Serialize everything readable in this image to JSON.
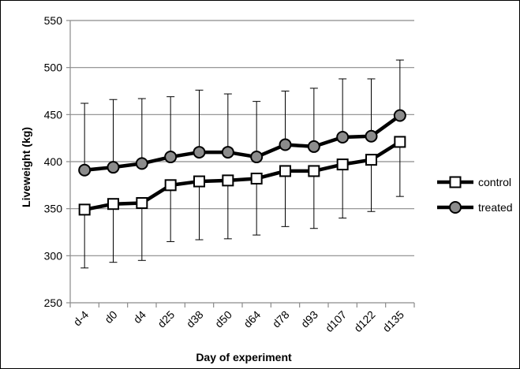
{
  "chart_data": {
    "type": "line",
    "xlabel": "Day of experiment",
    "ylabel": "Liveweight (kg)",
    "ylim": [
      250,
      550
    ],
    "yticks": [
      250,
      300,
      350,
      400,
      450,
      500,
      550
    ],
    "grid": "horizontal",
    "legend_position": "right",
    "categories": [
      "d-4",
      "d0",
      "d4",
      "d25",
      "d38",
      "d50",
      "d64",
      "d78",
      "d93",
      "d107",
      "d122",
      "d135"
    ],
    "series": [
      {
        "name": "control",
        "marker": "square",
        "marker_fill": "#ffffff",
        "line_color": "#000000",
        "values": [
          349,
          355,
          356,
          375,
          379,
          380,
          382,
          390,
          390,
          397,
          402,
          421
        ],
        "error_lower": [
          287,
          293,
          295,
          315,
          317,
          318,
          322,
          331,
          329,
          340,
          347,
          363
        ]
      },
      {
        "name": "treated",
        "marker": "circle",
        "marker_fill": "#8c8c8c",
        "line_color": "#000000",
        "values": [
          391,
          394,
          398,
          405,
          410,
          410,
          405,
          418,
          416,
          426,
          427,
          449
        ],
        "error_upper": [
          462,
          466,
          467,
          469,
          476,
          472,
          464,
          475,
          478,
          488,
          488,
          508
        ]
      }
    ]
  }
}
